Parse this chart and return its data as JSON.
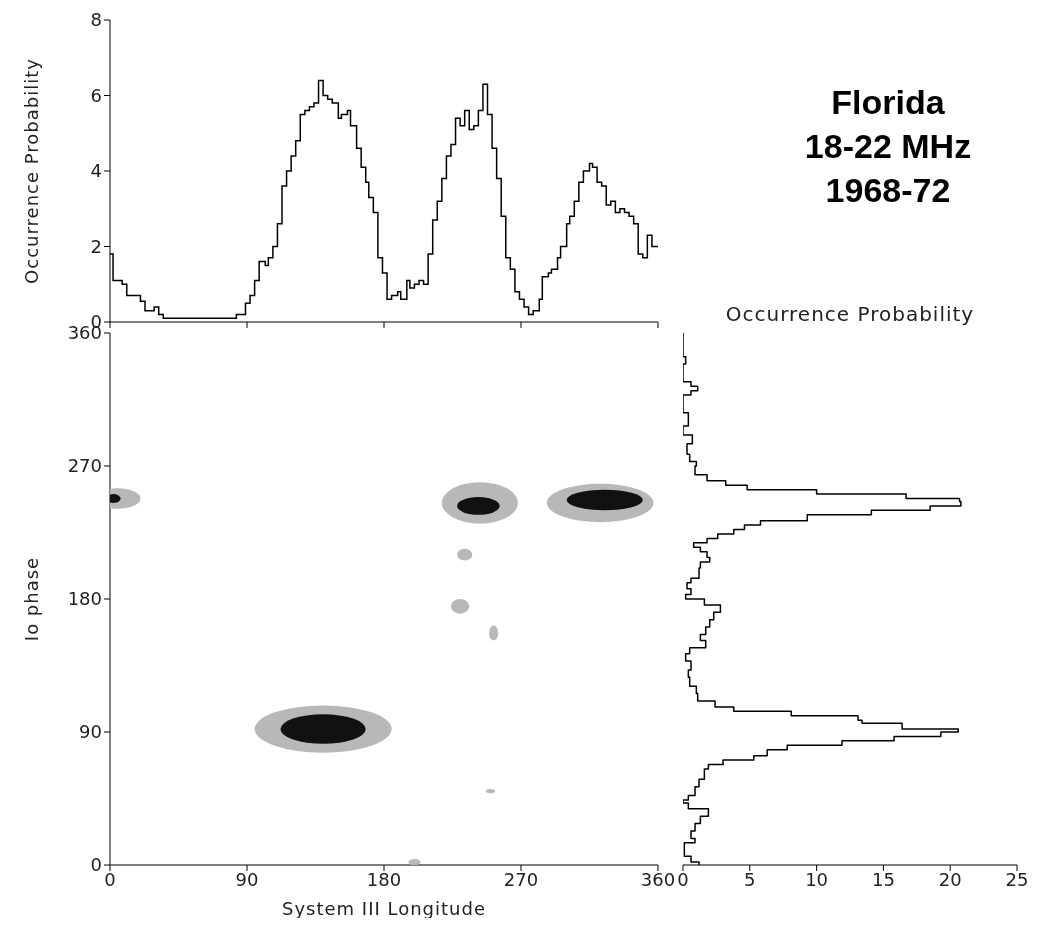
{
  "chart_data": [
    {
      "type": "step",
      "ylabel": "Occurrence Probability",
      "xlim": [
        0,
        360
      ],
      "xticks": [
        0,
        90,
        180,
        270,
        360
      ],
      "ylim": [
        0,
        8
      ],
      "yticks": [
        0,
        2,
        4,
        6,
        8
      ],
      "tick_labels": "y",
      "color": "#000000",
      "x": [
        0,
        2,
        8,
        11,
        20,
        23,
        29,
        32,
        35,
        83,
        89,
        92,
        95,
        98,
        102,
        104,
        107,
        110,
        113,
        116,
        119,
        122,
        125,
        128,
        131,
        134,
        137,
        140,
        143,
        146,
        150,
        152,
        156,
        158,
        162,
        165,
        168,
        170,
        173,
        176,
        179,
        182,
        185,
        189,
        191,
        195,
        197,
        200,
        203,
        206,
        209,
        212,
        215,
        218,
        221,
        224,
        227,
        230,
        233,
        236,
        239,
        242,
        245,
        248,
        251,
        254,
        257,
        260,
        263,
        266,
        269,
        272,
        275,
        278,
        282,
        284,
        288,
        290,
        294,
        296,
        300,
        302,
        305,
        308,
        311,
        315,
        317,
        320,
        323,
        326,
        329,
        332,
        335,
        338,
        341,
        344,
        347,
        350,
        353,
        356,
        360
      ],
      "values": [
        1.8,
        1.1,
        1.0,
        0.7,
        0.55,
        0.3,
        0.4,
        0.2,
        0.1,
        0.2,
        0.5,
        0.7,
        1.1,
        1.6,
        1.5,
        1.7,
        2.0,
        2.6,
        3.6,
        4.0,
        4.4,
        4.8,
        5.5,
        5.6,
        5.7,
        5.8,
        6.4,
        6.0,
        5.9,
        5.8,
        5.4,
        5.5,
        5.6,
        5.2,
        4.6,
        4.1,
        3.7,
        3.3,
        2.9,
        1.7,
        1.3,
        0.6,
        0.7,
        0.8,
        0.6,
        1.1,
        0.9,
        1.0,
        1.1,
        1.0,
        1.8,
        2.7,
        3.2,
        3.8,
        4.4,
        4.7,
        5.4,
        5.2,
        5.6,
        5.1,
        5.2,
        5.6,
        6.3,
        5.5,
        4.6,
        3.8,
        2.8,
        1.7,
        1.4,
        0.8,
        0.6,
        0.4,
        0.2,
        0.3,
        0.6,
        1.2,
        1.3,
        1.4,
        1.7,
        2.0,
        2.6,
        2.8,
        3.2,
        3.7,
        4.0,
        4.2,
        4.1,
        3.7,
        3.6,
        3.1,
        3.2,
        2.9,
        3.0,
        2.9,
        2.8,
        2.6,
        1.8,
        1.7,
        2.3,
        2.0,
        2.0
      ]
    },
    {
      "type": "scatter",
      "xlabel": "System III Longitude",
      "ylabel": "Io phase",
      "xlim": [
        0,
        360
      ],
      "xticks": [
        0,
        90,
        180,
        270,
        360
      ],
      "ylim": [
        0,
        360
      ],
      "yticks": [
        0,
        90,
        180,
        270,
        360
      ]
    },
    {
      "type": "step",
      "orientation": "horizontal",
      "xlabel": "Occurrence Probability",
      "xlim": [
        0,
        25
      ],
      "xticks": [
        0,
        5,
        10,
        15,
        20,
        25
      ],
      "ylim": [
        0,
        360
      ],
      "yticks": [
        0,
        90,
        180,
        270,
        360
      ],
      "tick_labels": "x",
      "color": "#000000",
      "x": [
        0,
        2,
        6,
        15,
        18,
        23,
        28,
        33,
        38,
        42,
        44,
        47,
        53,
        58,
        65,
        68,
        71,
        74,
        78,
        81,
        84,
        87,
        90,
        92,
        96,
        98,
        101,
        104,
        107,
        111,
        116,
        121,
        127,
        132,
        138,
        143,
        147,
        152,
        156,
        161,
        166,
        171,
        176,
        180,
        183,
        187,
        191,
        194,
        201,
        205,
        208,
        212,
        215,
        218,
        221,
        224,
        227,
        230,
        233,
        237,
        240,
        243,
        246,
        248,
        251,
        254,
        257,
        260,
        264,
        270,
        273,
        278,
        285,
        291,
        297,
        306,
        318,
        321,
        324,
        327,
        339,
        344,
        360
      ],
      "values": [
        1.2,
        0.6,
        0.1,
        0.9,
        0.6,
        0.9,
        1.3,
        1.9,
        0.4,
        0,
        0.4,
        0.9,
        1.2,
        1.6,
        1.9,
        3.0,
        5.3,
        6.3,
        7.8,
        11.9,
        15.8,
        19.3,
        20.6,
        16.4,
        13.4,
        13.1,
        8.1,
        3.8,
        2.4,
        1.1,
        1.0,
        0.5,
        0.4,
        0.6,
        0.2,
        0.5,
        1.7,
        1.3,
        1.7,
        2.0,
        2.3,
        2.8,
        1.6,
        0.2,
        0.6,
        0.3,
        0.6,
        1.2,
        1.3,
        2.0,
        1.8,
        1.3,
        0.8,
        1.8,
        2.6,
        3.8,
        4.6,
        5.8,
        9.3,
        14.1,
        18.5,
        20.8,
        20.7,
        16.7,
        10.0,
        4.8,
        3.2,
        1.8,
        0.9,
        1.0,
        0.5,
        0.3,
        0.7,
        0,
        0.4,
        0,
        0.6,
        1.1,
        0.6,
        0,
        0.2,
        0,
        0
      ]
    },
    {
      "type": "other",
      "title": "Florida\n18-22 MHz\n1968-72"
    }
  ]
}
